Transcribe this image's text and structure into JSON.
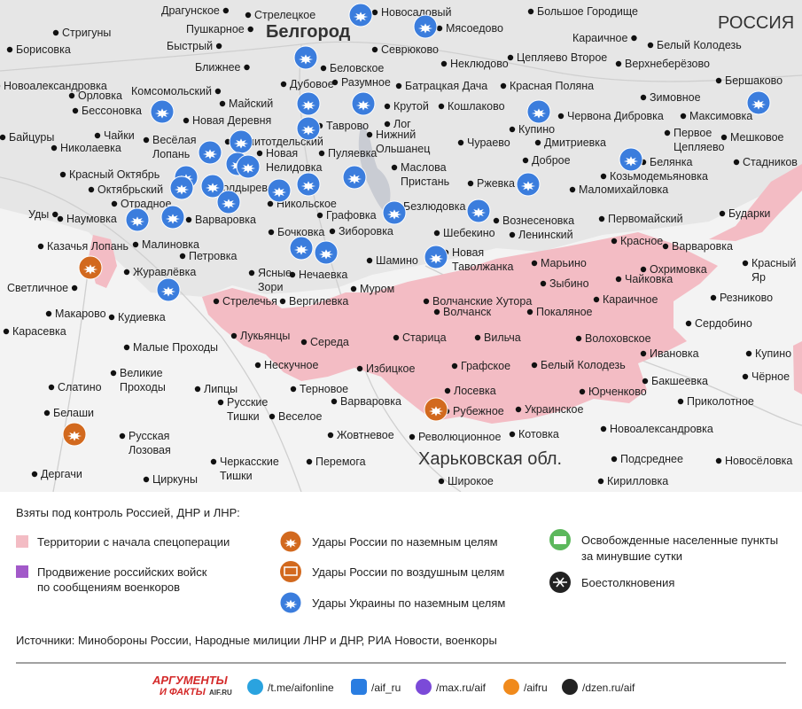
{
  "map": {
    "regions": [
      "Белгород",
      "РОССИЯ",
      "Харьковская обл."
    ],
    "places": [
      "Драгунское",
      "Стрелецкое",
      "Новосадовый",
      "Большое Городище",
      "Стригуны",
      "Пушкарное",
      "Мясоедово",
      "Караичное",
      "Белый Колодезь",
      "Борисовка",
      "Быстрый",
      "Севрюково",
      "Неклюдово",
      "Цепляево Второе",
      "Верхнеберёзово",
      "Новоалександровка",
      "Ближнее",
      "Дубовое",
      "Беловское",
      "Разумное",
      "Батрацкая Дача",
      "Красная Поляна",
      "Зимовное",
      "Бершаково",
      "Орловка",
      "Комсомольский",
      "Майский",
      "Крутой",
      "Кошлаково",
      "Бессоновка",
      "Новая Деревня",
      "Таврово",
      "Лог",
      "Купино",
      "Червона Дибровка",
      "Максимовка",
      "Байцуры",
      "Чайки",
      [
        "Весёлая",
        "Лопань"
      ],
      "Политотдельский",
      [
        "Нижний",
        "Ольшанец"
      ],
      "Чураево",
      "Дмитриевка",
      [
        "Первое",
        "Цепляево"
      ],
      "Мешковое",
      "Николаевка",
      [
        "Новая",
        "Нелидовка"
      ],
      "Пуляевка",
      "Доброе",
      "Белянка",
      "Стадников",
      "Красный Октябрь",
      [
        "Маслова",
        "Пристань"
      ],
      "Козьмодемьяновка",
      "Октябрьский",
      "Болдыревка",
      "Никольское",
      "Ржевка",
      "Маломихайловка",
      "Отрадное",
      "Безлюдовка",
      "Графовка",
      "Вознесеновка",
      "Первомайский",
      "Бударки",
      "Уды",
      "Наумовка",
      "Варваровка",
      "Бочковка",
      "Зиборовка",
      "Шебекино",
      "Ленинский",
      "Красное",
      "Варваровка",
      "Казачья Лопань",
      "Малиновка",
      "Петровка",
      "Шамино",
      [
        "Новая",
        "Таволжанка"
      ],
      "Марьино",
      "Охримовка",
      [
        "Красный",
        "Яр"
      ],
      "Журавлёвка",
      [
        "Ясные",
        "Зори"
      ],
      "Нечаевка",
      "Чайковка",
      "Зыбино",
      "Светличное",
      "Муром",
      "Резниково",
      "Стрелечья",
      "Вергилевка",
      "Волчанские Хутора",
      "Караичное",
      "Волчанск",
      "Покаляное",
      "Макарово",
      "Кудиевка",
      "Сердобино",
      "Карасевка",
      "Лукьянцы",
      "Старица",
      "Вильча",
      "Волоховское",
      "Середа",
      "Малые Проходы",
      "Ивановка",
      "Купино",
      "Нескучное",
      "Избицкое",
      "Графское",
      "Белый Колодезь",
      [
        "Великие",
        "Проходы"
      ],
      "Чёрное",
      "Бакшеевка",
      "Терновое",
      "Слатино",
      "Липцы",
      "Юрченково",
      "Лосевка",
      "Варваровка",
      "Приколотное",
      "Веселое",
      "Рубежное",
      "Украинское",
      "Белаши",
      [
        "Русские",
        "Тишки"
      ],
      "Новоалександровка",
      [
        "Русская",
        "Лозовая"
      ],
      "Жовтневое",
      "Революционное",
      "Котовка",
      "Подсреднее",
      "Новосёловка",
      "Перемога",
      [
        "Черкасские",
        "Тишки"
      ],
      "Дергачи",
      "Циркуны",
      "Широкое",
      "Кирилловка"
    ]
  },
  "legend": {
    "title": "Взяты под контроль Россией, ДНР и ЛНР:",
    "items": [
      "Территории с начала спецоперации",
      [
        "Продвижение российских войск",
        "по сообщениям военкоров"
      ],
      "Удары России по наземным целям",
      "Удары России по воздушным целям",
      "Удары Украины по наземным целям",
      [
        "Освобожденные населенные пункты",
        "за минувшие сутки"
      ],
      "Боестолкновения"
    ]
  },
  "sources": "Источники: Минобороны России, Народные милиции ЛНР и ДНР, РИА Новости, военкоры",
  "footer": {
    "logo": [
      "АРГУМЕНТЫ",
      "И ФАКТЫ",
      "AIF.RU"
    ],
    "links": [
      "/t.me/aifonline",
      "/aif_ru",
      "/max.ru/aif",
      "/aifru",
      "/dzen.ru/aif"
    ]
  }
}
